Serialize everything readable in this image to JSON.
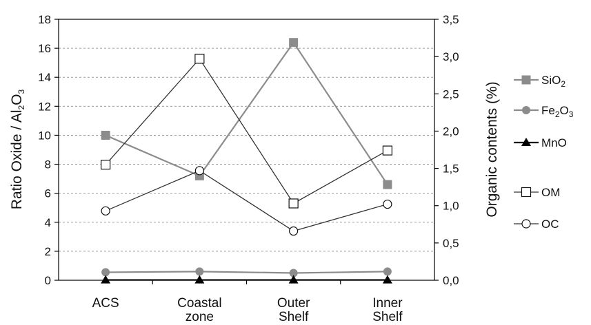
{
  "chart_data": {
    "type": "line",
    "categories": [
      "ACS",
      "Coastal zone",
      "Outer Shelf",
      "Inner Shelf"
    ],
    "category_lines": [
      [
        "ACS"
      ],
      [
        "Coastal",
        "zone"
      ],
      [
        "Outer",
        "Shelf"
      ],
      [
        "Inner",
        "Shelf"
      ]
    ],
    "y_left": {
      "label_parts": [
        "Ratio Oxide / Al",
        "2",
        "O",
        "3"
      ],
      "ylim": [
        0,
        18
      ],
      "ticks": [
        "0",
        "2",
        "4",
        "6",
        "8",
        "10",
        "12",
        "14",
        "16",
        "18"
      ]
    },
    "y_right": {
      "label": "Organic contents  (%)",
      "ylim": [
        0,
        3.5
      ],
      "ticks": [
        "0,0",
        "0,5",
        "1,0",
        "1,5",
        "2,0",
        "2,5",
        "3,0",
        "3,5"
      ]
    },
    "grid": "horizontal dashed",
    "legend_position": "right",
    "series": [
      {
        "name": "SiO2",
        "name_parts": [
          "SiO",
          "2"
        ],
        "axis": "left",
        "values": [
          10.0,
          7.2,
          16.4,
          6.6
        ],
        "marker": "filled-square",
        "color": "#8c8c8c"
      },
      {
        "name": "Fe2O3",
        "name_parts": [
          "Fe",
          "2",
          "O",
          "3"
        ],
        "axis": "left",
        "values": [
          0.55,
          0.6,
          0.5,
          0.6
        ],
        "marker": "filled-circle",
        "color": "#8c8c8c"
      },
      {
        "name": "MnO",
        "name_parts": [
          "MnO"
        ],
        "axis": "left",
        "values": [
          0.02,
          0.02,
          0.02,
          0.02
        ],
        "marker": "filled-triangle",
        "color": "#000000"
      },
      {
        "name": "OM",
        "name_parts": [
          "OM"
        ],
        "axis": "right",
        "values": [
          1.55,
          2.97,
          1.03,
          1.74
        ],
        "marker": "open-square",
        "color": "#333333"
      },
      {
        "name": "OC",
        "name_parts": [
          "OC"
        ],
        "axis": "right",
        "values": [
          0.93,
          1.47,
          0.66,
          1.02
        ],
        "marker": "open-circle",
        "color": "#333333"
      }
    ]
  }
}
